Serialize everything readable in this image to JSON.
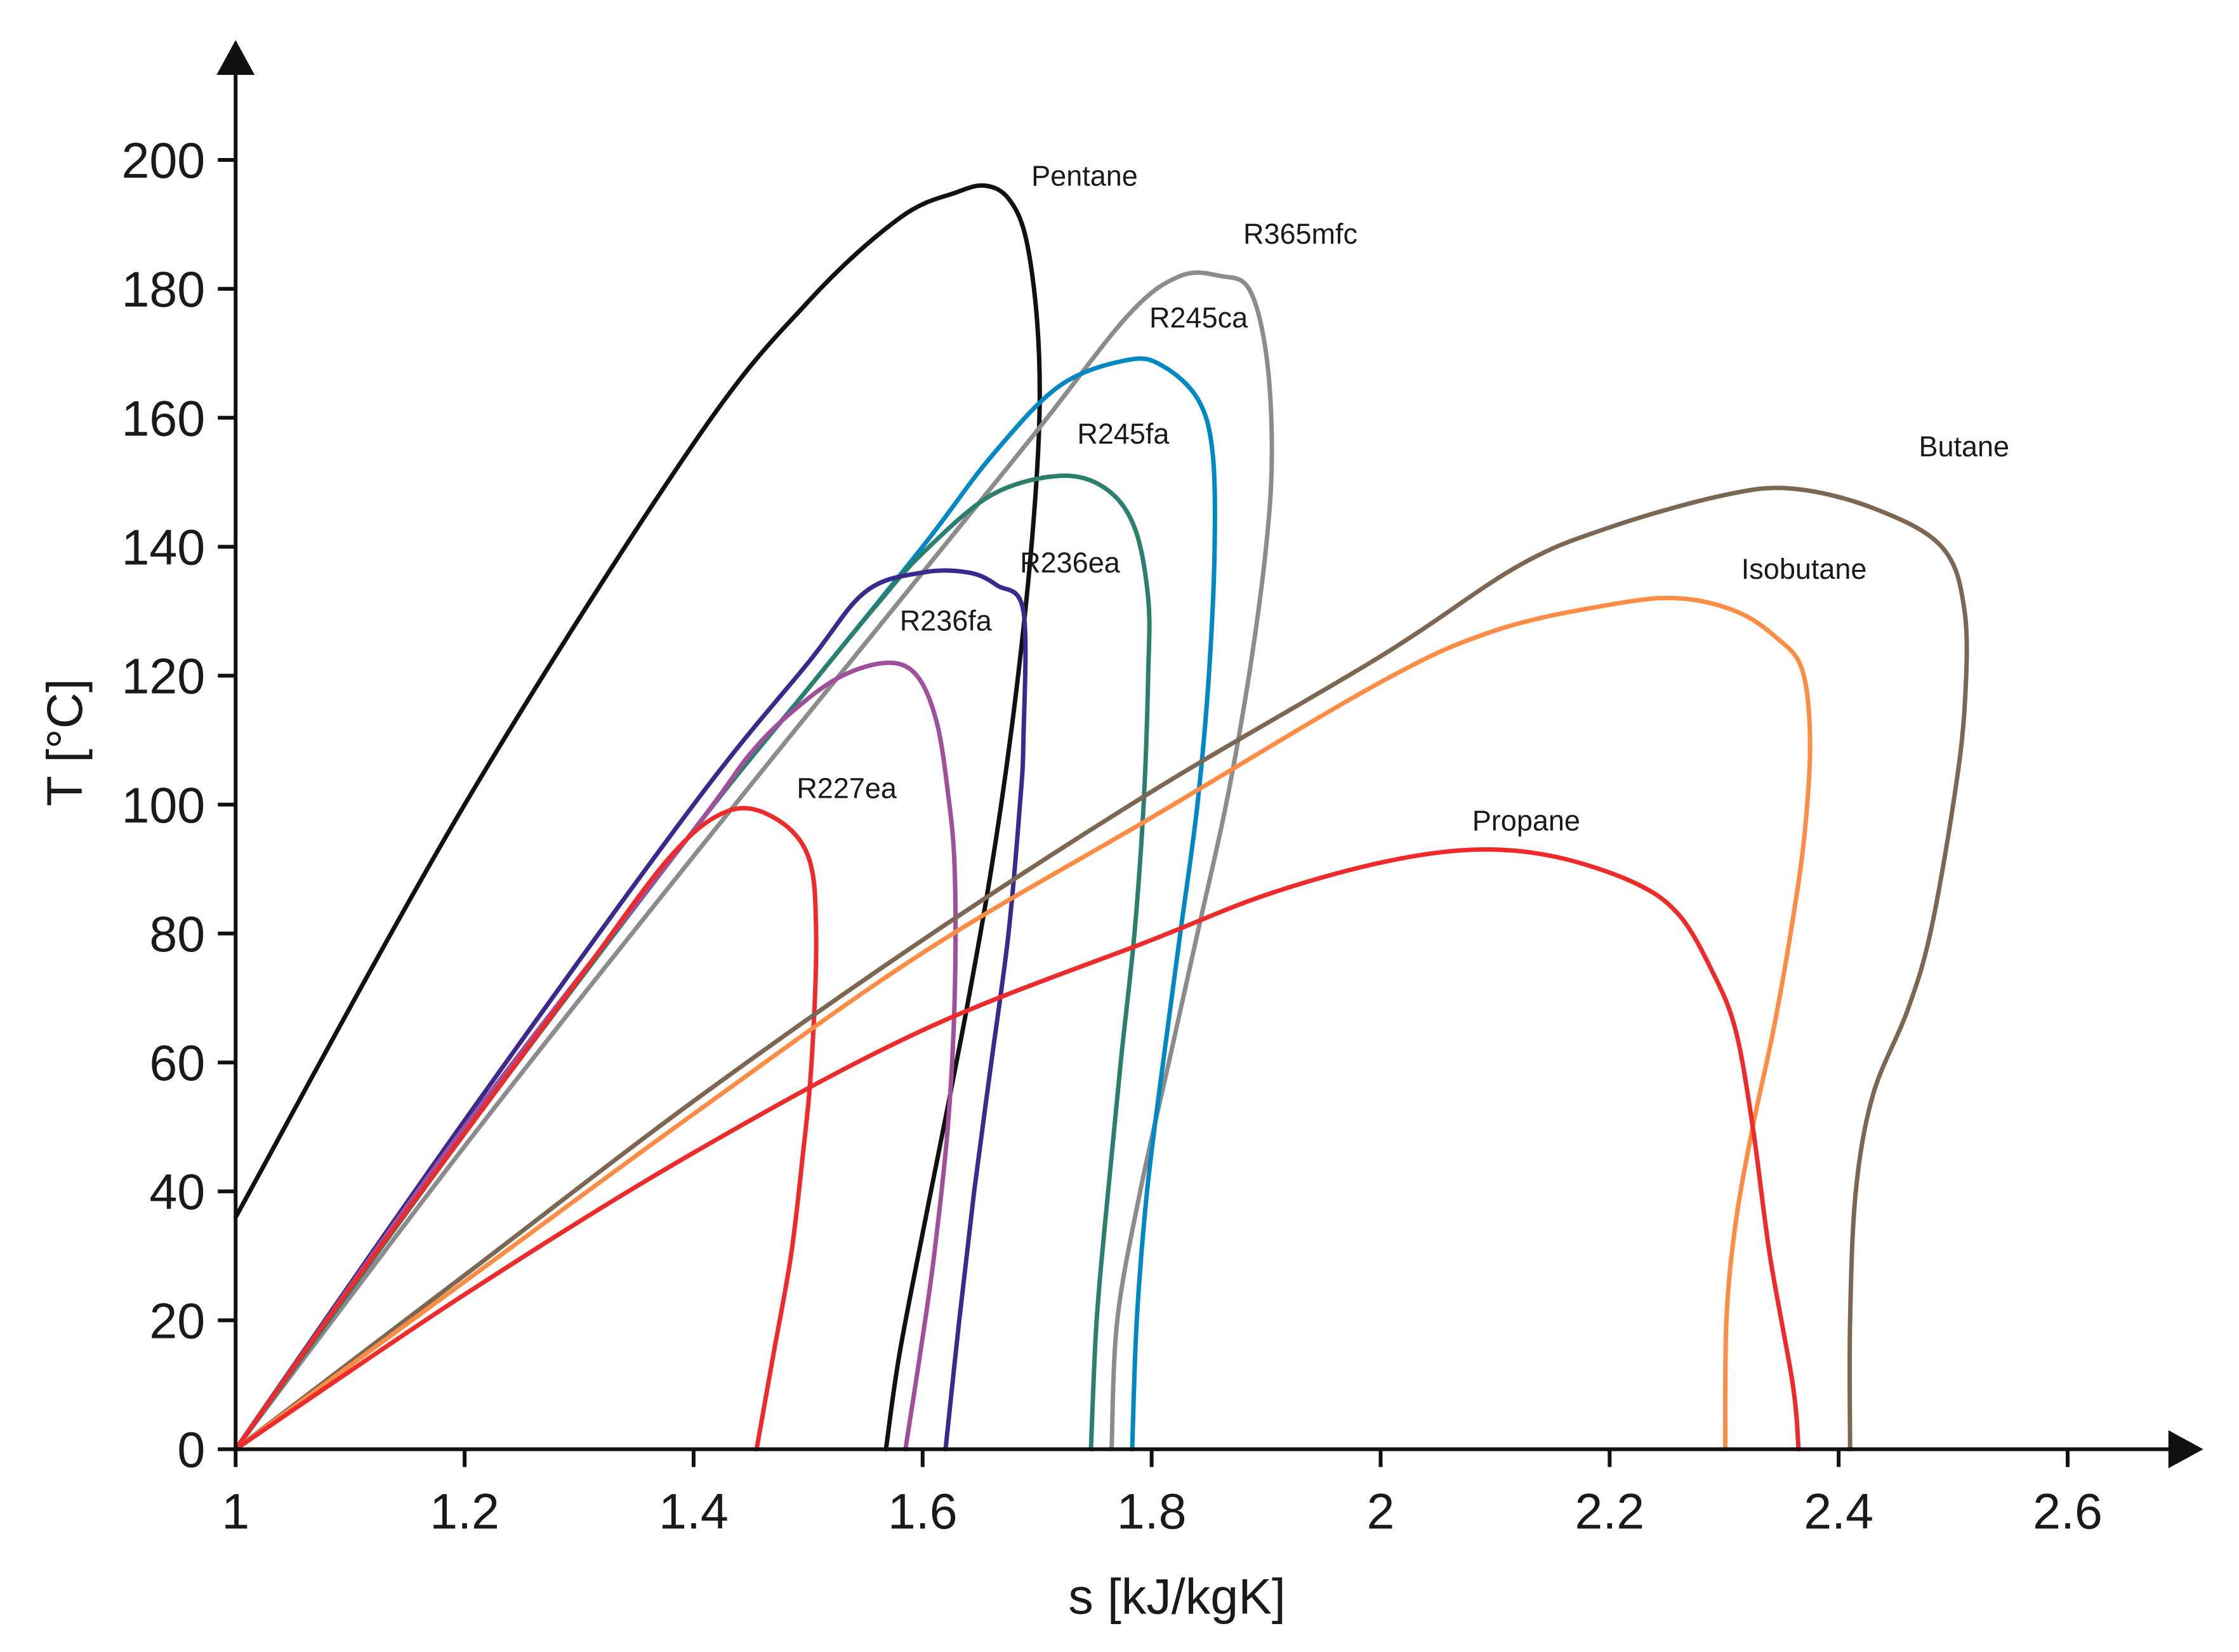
{
  "chart_data": {
    "type": "line",
    "title": "",
    "xlabel": "s [kJ/kgK]",
    "ylabel": "T [°C]",
    "xlim": [
      1.0,
      2.7
    ],
    "ylim": [
      0,
      215
    ],
    "xticks": [
      1,
      1.2,
      1.4,
      1.6,
      1.8,
      2,
      2.2,
      2.4,
      2.6
    ],
    "xtick_labels": [
      "1",
      "1.2",
      "1.4",
      "1.6",
      "1.8",
      "2",
      "2.2",
      "2.4",
      "2.6"
    ],
    "yticks": [
      0,
      20,
      40,
      60,
      80,
      100,
      120,
      140,
      160,
      180,
      200
    ],
    "ytick_labels": [
      "0",
      "20",
      "40",
      "60",
      "80",
      "100",
      "120",
      "140",
      "160",
      "180",
      "200"
    ],
    "grid": false,
    "legend": "inline labels",
    "series": [
      {
        "name": "Pentane",
        "color": "#111111",
        "points": [
          [
            1.0,
            36
          ],
          [
            1.2,
            100
          ],
          [
            1.4,
            156
          ],
          [
            1.5,
            178
          ],
          [
            1.58,
            191
          ],
          [
            1.63,
            195
          ],
          [
            1.655,
            196
          ],
          [
            1.675,
            194
          ],
          [
            1.69,
            188
          ],
          [
            1.7,
            175
          ],
          [
            1.702,
            160
          ],
          [
            1.695,
            140
          ],
          [
            1.68,
            115
          ],
          [
            1.66,
            90
          ],
          [
            1.635,
            65
          ],
          [
            1.605,
            38
          ],
          [
            1.58,
            15
          ],
          [
            1.568,
            0
          ]
        ],
        "label_anchor": [
          1.695,
          196
        ]
      },
      {
        "name": "R365mfc",
        "color": "#8c8c8c",
        "points": [
          [
            1.0,
            0
          ],
          [
            1.2,
            47
          ],
          [
            1.4,
            92
          ],
          [
            1.6,
            136
          ],
          [
            1.7,
            158
          ],
          [
            1.78,
            176
          ],
          [
            1.825,
            182
          ],
          [
            1.86,
            182
          ],
          [
            1.885,
            180
          ],
          [
            1.9,
            170
          ],
          [
            1.905,
            155
          ],
          [
            1.9,
            140
          ],
          [
            1.885,
            120
          ],
          [
            1.865,
            100
          ],
          [
            1.84,
            80
          ],
          [
            1.815,
            60
          ],
          [
            1.79,
            40
          ],
          [
            1.77,
            20
          ],
          [
            1.765,
            0
          ]
        ],
        "label_anchor": [
          1.88,
          187
        ]
      },
      {
        "name": "R245ca",
        "color": "#0088c4",
        "points": [
          [
            1.0,
            0
          ],
          [
            1.2,
            49
          ],
          [
            1.4,
            96
          ],
          [
            1.5,
            118
          ],
          [
            1.6,
            140
          ],
          [
            1.66,
            154
          ],
          [
            1.72,
            165
          ],
          [
            1.78,
            169
          ],
          [
            1.81,
            168
          ],
          [
            1.84,
            163
          ],
          [
            1.853,
            155
          ],
          [
            1.855,
            140
          ],
          [
            1.85,
            120
          ],
          [
            1.84,
            100
          ],
          [
            1.825,
            80
          ],
          [
            1.81,
            60
          ],
          [
            1.796,
            40
          ],
          [
            1.787,
            20
          ],
          [
            1.783,
            0
          ]
        ],
        "label_anchor": [
          1.798,
          174
        ]
      },
      {
        "name": "R245fa",
        "color": "#2a7f6e",
        "points": [
          [
            1.0,
            0
          ],
          [
            1.2,
            49
          ],
          [
            1.4,
            96
          ],
          [
            1.5,
            118
          ],
          [
            1.56,
            131
          ],
          [
            1.6,
            139
          ],
          [
            1.66,
            148
          ],
          [
            1.72,
            151
          ],
          [
            1.76,
            149
          ],
          [
            1.785,
            143
          ],
          [
            1.797,
            132
          ],
          [
            1.797,
            120
          ],
          [
            1.793,
            100
          ],
          [
            1.785,
            80
          ],
          [
            1.773,
            60
          ],
          [
            1.762,
            40
          ],
          [
            1.752,
            20
          ],
          [
            1.747,
            0
          ]
        ],
        "label_anchor": [
          1.735,
          156
        ]
      },
      {
        "name": "R236ea",
        "color": "#3a2a8f",
        "points": [
          [
            1.0,
            0
          ],
          [
            1.2,
            51
          ],
          [
            1.4,
            100
          ],
          [
            1.5,
            122
          ],
          [
            1.55,
            133
          ],
          [
            1.6,
            136
          ],
          [
            1.64,
            136
          ],
          [
            1.665,
            134
          ],
          [
            1.688,
            130
          ],
          [
            1.688,
            110
          ],
          [
            1.685,
            100
          ],
          [
            1.675,
            80
          ],
          [
            1.66,
            60
          ],
          [
            1.645,
            40
          ],
          [
            1.632,
            20
          ],
          [
            1.62,
            0
          ]
        ],
        "label_anchor": [
          1.685,
          136
        ]
      },
      {
        "name": "R236fa",
        "color": "#a0509a",
        "points": [
          [
            1.0,
            0
          ],
          [
            1.2,
            50
          ],
          [
            1.4,
            96
          ],
          [
            1.45,
            108
          ],
          [
            1.49,
            115
          ],
          [
            1.53,
            120
          ],
          [
            1.57,
            122
          ],
          [
            1.595,
            120
          ],
          [
            1.612,
            113
          ],
          [
            1.622,
            102
          ],
          [
            1.628,
            90
          ],
          [
            1.628,
            70
          ],
          [
            1.622,
            50
          ],
          [
            1.61,
            30
          ],
          [
            1.598,
            15
          ],
          [
            1.585,
            0
          ]
        ],
        "label_anchor": [
          1.58,
          127
        ]
      },
      {
        "name": "R227ea",
        "color": "#ee2a2a",
        "points": [
          [
            1.0,
            0
          ],
          [
            1.1,
            25
          ],
          [
            1.2,
            49
          ],
          [
            1.3,
            73
          ],
          [
            1.38,
            92
          ],
          [
            1.43,
            99
          ],
          [
            1.47,
            98
          ],
          [
            1.5,
            92
          ],
          [
            1.507,
            80
          ],
          [
            1.503,
            60
          ],
          [
            1.495,
            45
          ],
          [
            1.485,
            30
          ],
          [
            1.47,
            15
          ],
          [
            1.455,
            0
          ]
        ],
        "label_anchor": [
          1.49,
          101
        ]
      },
      {
        "name": "Butane",
        "color": "#7b6752",
        "points": [
          [
            1.0,
            0
          ],
          [
            1.2,
            27
          ],
          [
            1.4,
            54
          ],
          [
            1.6,
            79
          ],
          [
            1.8,
            102
          ],
          [
            2.0,
            123
          ],
          [
            2.12,
            137
          ],
          [
            2.2,
            143
          ],
          [
            2.3,
            148
          ],
          [
            2.36,
            149
          ],
          [
            2.43,
            146
          ],
          [
            2.49,
            140
          ],
          [
            2.51,
            130
          ],
          [
            2.51,
            115
          ],
          [
            2.5,
            100
          ],
          [
            2.48,
            80
          ],
          [
            2.46,
            68
          ],
          [
            2.43,
            55
          ],
          [
            2.415,
            40
          ],
          [
            2.41,
            20
          ],
          [
            2.41,
            0
          ]
        ],
        "label_anchor": [
          2.47,
          154
        ]
      },
      {
        "name": "Isobutane",
        "color": "#ff8c45",
        "points": [
          [
            1.0,
            0
          ],
          [
            1.2,
            26
          ],
          [
            1.4,
            52
          ],
          [
            1.6,
            77
          ],
          [
            1.8,
            98
          ],
          [
            2.0,
            119
          ],
          [
            2.1,
            127
          ],
          [
            2.2,
            131
          ],
          [
            2.26,
            132
          ],
          [
            2.31,
            130
          ],
          [
            2.345,
            126
          ],
          [
            2.368,
            121
          ],
          [
            2.375,
            110
          ],
          [
            2.37,
            95
          ],
          [
            2.358,
            80
          ],
          [
            2.343,
            65
          ],
          [
            2.325,
            50
          ],
          [
            2.31,
            35
          ],
          [
            2.302,
            20
          ],
          [
            2.301,
            0
          ]
        ],
        "label_anchor": [
          2.315,
          135
        ]
      },
      {
        "name": "Propane",
        "color": "#ee2a2a",
        "points": [
          [
            1.0,
            0
          ],
          [
            1.2,
            24
          ],
          [
            1.4,
            46
          ],
          [
            1.6,
            65
          ],
          [
            1.8,
            79
          ],
          [
            1.9,
            86
          ],
          [
            2.0,
            91
          ],
          [
            2.08,
            93
          ],
          [
            2.15,
            92
          ],
          [
            2.22,
            88
          ],
          [
            2.26,
            83
          ],
          [
            2.29,
            74
          ],
          [
            2.31,
            65
          ],
          [
            2.325,
            50
          ],
          [
            2.34,
            30
          ],
          [
            2.36,
            10
          ],
          [
            2.365,
            0
          ]
        ],
        "label_anchor": [
          2.08,
          96
        ]
      }
    ]
  }
}
